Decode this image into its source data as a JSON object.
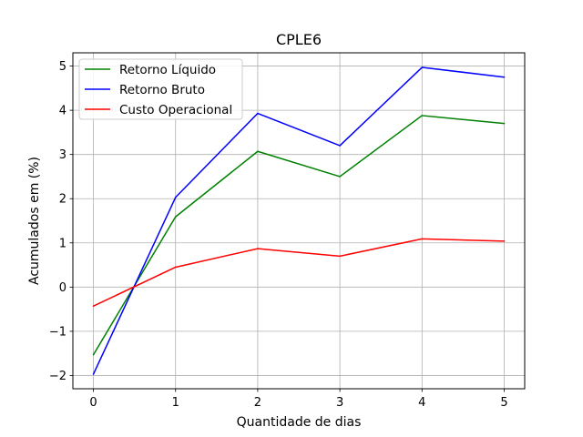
{
  "chart_data": {
    "type": "line",
    "title": "CPLE6",
    "xlabel": "Quantidade de dias",
    "ylabel": "Acumulados em (%)",
    "x": [
      0,
      1,
      2,
      3,
      4,
      5
    ],
    "xticks": [
      "0",
      "1",
      "2",
      "3",
      "4",
      "5"
    ],
    "yticks": [
      "−2",
      "−1",
      "0",
      "1",
      "2",
      "3",
      "4",
      "5"
    ],
    "xlim": [
      -0.25,
      5.25
    ],
    "ylim": [
      -2.3,
      5.3
    ],
    "grid": true,
    "legend_position": "top-left",
    "series": [
      {
        "name": "Retorno Líquido",
        "color": "#008000",
        "values": [
          -1.53,
          1.59,
          3.07,
          2.5,
          3.88,
          3.7
        ]
      },
      {
        "name": "Retorno Bruto",
        "color": "#0000ff",
        "values": [
          -1.97,
          2.03,
          3.93,
          3.2,
          4.97,
          4.75
        ]
      },
      {
        "name": "Custo Operacional",
        "color": "#ff0000",
        "values": [
          -0.43,
          0.45,
          0.87,
          0.7,
          1.09,
          1.04
        ]
      }
    ]
  }
}
